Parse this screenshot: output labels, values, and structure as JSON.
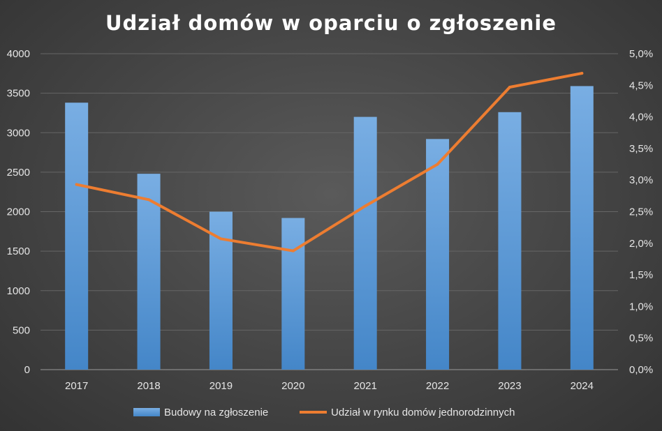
{
  "chart_data": {
    "type": "bar+line",
    "title": "Udział domów w oparciu o zgłoszenie",
    "categories": [
      "2017",
      "2018",
      "2019",
      "2020",
      "2021",
      "2022",
      "2023",
      "2024"
    ],
    "series": [
      {
        "name": "Budowy na zgłoszenie",
        "type": "bar",
        "axis": "left",
        "color": "#5b9bd5",
        "values": [
          3380,
          2480,
          2000,
          1920,
          3200,
          2920,
          3260,
          3590
        ]
      },
      {
        "name": "Udział w rynku domów jednorodzinnych",
        "type": "line",
        "axis": "right",
        "color": "#ed7d31",
        "values": [
          2.93,
          2.69,
          2.07,
          1.88,
          2.59,
          3.25,
          4.47,
          4.69
        ]
      }
    ],
    "ylim_left": [
      0,
      4000
    ],
    "yticks_left": [
      "0",
      "500",
      "1000",
      "1500",
      "2000",
      "2500",
      "3000",
      "3500",
      "4000"
    ],
    "ylim_right": [
      0,
      5.0
    ],
    "yticks_right": [
      "0,0%",
      "0,5%",
      "1,0%",
      "1,5%",
      "2,0%",
      "2,5%",
      "3,0%",
      "3,5%",
      "4,0%",
      "4,5%",
      "5,0%"
    ],
    "grid": true,
    "legend_position": "bottom"
  }
}
